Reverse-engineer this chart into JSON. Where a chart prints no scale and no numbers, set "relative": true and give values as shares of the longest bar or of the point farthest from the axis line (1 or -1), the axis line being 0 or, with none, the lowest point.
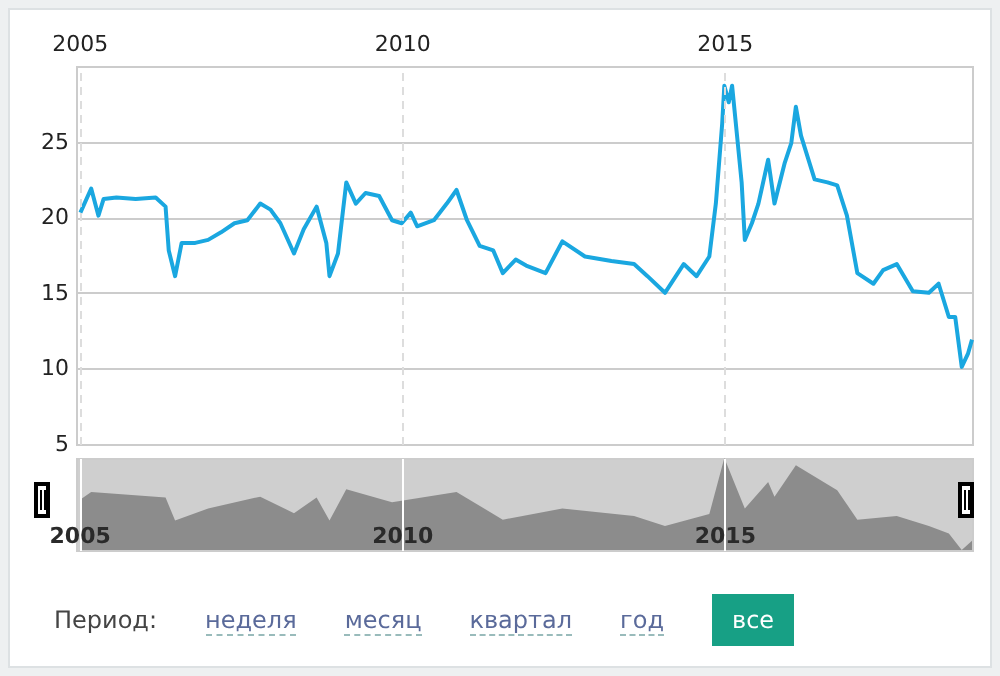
{
  "chart_data": [
    {
      "type": "line",
      "xlim": [
        "2004-12-14",
        "2018-11-03"
      ],
      "xticks": [
        {
          "value": "2005-01-01",
          "label": "2005"
        },
        {
          "value": "2010-01-01",
          "label": "2010"
        },
        {
          "value": "2015-01-01",
          "label": "2015"
        }
      ],
      "ylim": [
        5,
        30
      ],
      "yticks": [
        5,
        10,
        15,
        20,
        25
      ],
      "grid": true,
      "x": [
        "2005-01-08",
        "2005-03-10",
        "2005-04-20",
        "2005-05-19",
        "2005-07-31",
        "2005-11-17",
        "2006-03-10",
        "2006-05-05",
        "2006-05-23",
        "2006-06-28",
        "2006-08-04",
        "2006-10-20",
        "2007-01-01",
        "2007-03-15",
        "2007-05-30",
        "2007-08-11",
        "2007-10-23",
        "2007-12-20",
        "2008-02-14",
        "2008-05-01",
        "2008-06-25",
        "2008-09-06",
        "2008-10-31",
        "2008-11-18",
        "2009-01-05",
        "2009-02-21",
        "2009-04-16",
        "2009-06-10",
        "2009-08-26",
        "2009-11-07",
        "2010-01-01",
        "2010-02-21",
        "2010-03-29",
        "2010-07-02",
        "2010-09-13",
        "2010-11-07",
        "2011-01-05",
        "2011-03-18",
        "2011-06-03",
        "2011-07-27",
        "2011-10-08",
        "2011-12-06",
        "2012-03-25",
        "2012-06-28",
        "2012-11-03",
        "2013-04-02",
        "2013-08-08",
        "2013-10-23",
        "2014-01-30",
        "2014-05-16",
        "2014-07-28",
        "2014-10-08",
        "2014-11-14",
        "2014-12-20",
        "2015-01-01",
        "2015-01-26",
        "2015-02-14",
        "2015-04-09",
        "2015-04-27",
        "2015-06-06",
        "2015-07-13",
        "2015-09-06",
        "2015-10-12",
        "2015-12-09",
        "2016-01-15",
        "2016-02-10",
        "2016-03-10",
        "2016-05-26",
        "2016-08-07",
        "2016-10-01",
        "2016-11-25",
        "2017-01-23",
        "2017-04-24",
        "2017-06-18",
        "2017-09-03",
        "2017-12-03",
        "2018-03-04",
        "2018-04-28",
        "2018-06-25",
        "2018-07-31",
        "2018-09-06",
        "2018-10-12",
        "2018-11-03"
      ],
      "series": [
        {
          "color": "#1aa7e0",
          "values": [
            20.3,
            21.9,
            20.1,
            21.2,
            21.3,
            21.2,
            21.3,
            20.7,
            17.8,
            16.1,
            18.3,
            18.3,
            18.5,
            19.0,
            19.6,
            19.8,
            20.9,
            20.5,
            19.6,
            17.6,
            19.2,
            20.7,
            18.3,
            16.1,
            17.6,
            22.3,
            20.9,
            21.6,
            21.4,
            19.8,
            19.6,
            20.3,
            19.4,
            19.8,
            20.9,
            21.8,
            19.8,
            18.1,
            17.8,
            16.3,
            17.2,
            16.8,
            16.3,
            18.4,
            17.4,
            17.1,
            16.9,
            16.1,
            15.0,
            16.9,
            16.1,
            17.4,
            20.9,
            26.2,
            28.7,
            27.6,
            28.7,
            22.3,
            18.5,
            19.6,
            20.9,
            23.8,
            20.9,
            23.6,
            24.9,
            27.3,
            25.4,
            22.5,
            22.3,
            22.1,
            20.1,
            16.3,
            15.6,
            16.5,
            16.9,
            15.1,
            15.0,
            15.6,
            13.4,
            13.4,
            10.1,
            11.0,
            11.9
          ]
        }
      ]
    },
    {
      "type": "area",
      "relative": true,
      "grid": "x",
      "xlim": [
        "2004-12-14",
        "2018-11-03"
      ],
      "xticks": [
        {
          "value": "2005-01-01",
          "label": "2005"
        },
        {
          "value": "2010-01-01",
          "label": "2010"
        },
        {
          "value": "2015-01-01",
          "label": "2015"
        }
      ],
      "x": [
        "2005-01-08",
        "2005-03-10",
        "2006-05-05",
        "2006-06-28",
        "2007-01-01",
        "2007-10-23",
        "2008-05-01",
        "2008-09-06",
        "2008-11-18",
        "2009-02-21",
        "2009-11-07",
        "2010-11-07",
        "2011-07-27",
        "2012-06-28",
        "2013-08-08",
        "2014-01-30",
        "2014-10-08",
        "2015-01-01",
        "2015-04-27",
        "2015-09-06",
        "2015-10-12",
        "2016-02-10",
        "2016-10-01",
        "2017-01-23",
        "2017-09-03",
        "2018-03-04",
        "2018-06-25",
        "2018-09-06",
        "2018-11-03"
      ],
      "series": [
        {
          "color": "#8c8c8c",
          "values": [
            0.55,
            0.63,
            0.57,
            0.32,
            0.45,
            0.58,
            0.4,
            0.57,
            0.32,
            0.66,
            0.52,
            0.63,
            0.33,
            0.45,
            0.37,
            0.26,
            0.39,
            1,
            0.45,
            0.74,
            0.58,
            0.92,
            0.65,
            0.33,
            0.37,
            0.26,
            0.18,
            0,
            0.1
          ]
        }
      ],
      "annotations": [
        "Период:",
        "неделя",
        "месяц",
        "квартал",
        "год",
        "все"
      ]
    }
  ]
}
